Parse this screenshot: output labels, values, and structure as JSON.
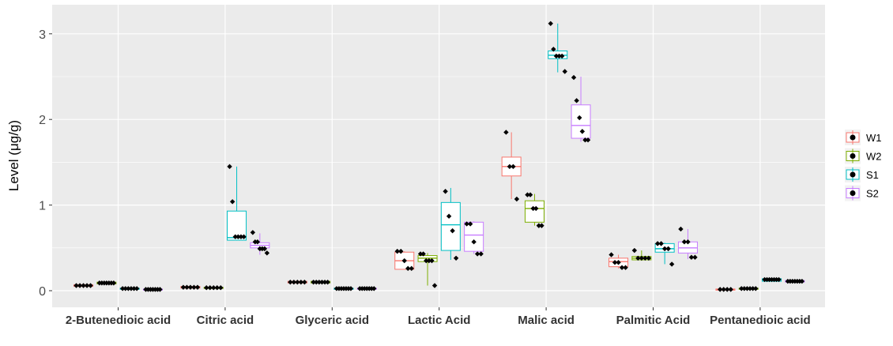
{
  "chart_data": {
    "type": "boxplot",
    "title": "",
    "xlabel": "",
    "ylabel": "Level (μg/g)",
    "ylim": [
      -0.2,
      3.35
    ],
    "yticks": [
      0,
      1,
      2,
      3
    ],
    "ytick_labels": [
      "0",
      "1",
      "2",
      "3"
    ],
    "grid": true,
    "legend_position": "right",
    "categories": [
      "2-Butenedioic acid",
      "Citric acid",
      "Glyceric acid",
      "Lactic Acid",
      "Malic acid",
      "Palmitic Acid",
      "Pentanedioic acid"
    ],
    "colors": {
      "W1": "#F8766D",
      "W2": "#7CAE00",
      "S1": "#00BFC4",
      "S2": "#C77CFF",
      "panel": "#EBEBEB",
      "grid": "#FFFFFF"
    },
    "series": [
      {
        "name": "W1",
        "boxes": [
          {
            "q1": 0.05,
            "median": 0.06,
            "q3": 0.07,
            "low": 0.05,
            "high": 0.07,
            "points": [
              0.06,
              0.06,
              0.06,
              0.06,
              0.06
            ]
          },
          {
            "q1": 0.03,
            "median": 0.04,
            "q3": 0.05,
            "low": 0.03,
            "high": 0.05,
            "points": [
              0.04,
              0.04,
              0.04,
              0.04,
              0.04
            ]
          },
          {
            "q1": 0.09,
            "median": 0.1,
            "q3": 0.11,
            "low": 0.09,
            "high": 0.11,
            "points": [
              0.1,
              0.1,
              0.1,
              0.1,
              0.1
            ]
          },
          {
            "q1": 0.25,
            "median": 0.35,
            "q3": 0.45,
            "low": 0.25,
            "high": 0.46,
            "points": [
              0.46,
              0.46,
              0.35,
              0.26,
              0.26
            ]
          },
          {
            "q1": 1.34,
            "median": 1.45,
            "q3": 1.56,
            "low": 1.07,
            "high": 1.85,
            "points": [
              1.85,
              1.45,
              1.45,
              1.07
            ]
          },
          {
            "q1": 0.28,
            "median": 0.34,
            "q3": 0.38,
            "low": 0.26,
            "high": 0.42,
            "points": [
              0.42,
              0.33,
              0.33,
              0.27,
              0.27
            ]
          },
          {
            "q1": 0.01,
            "median": 0.015,
            "q3": 0.02,
            "low": 0.01,
            "high": 0.02,
            "points": [
              0.015,
              0.015,
              0.015,
              0.015
            ]
          }
        ]
      },
      {
        "name": "W2",
        "boxes": [
          {
            "q1": 0.08,
            "median": 0.09,
            "q3": 0.1,
            "low": 0.08,
            "high": 0.1,
            "points": [
              0.09,
              0.09,
              0.09,
              0.09,
              0.09,
              0.09,
              0.09
            ]
          },
          {
            "q1": 0.03,
            "median": 0.035,
            "q3": 0.04,
            "low": 0.03,
            "high": 0.04,
            "points": [
              0.035,
              0.035,
              0.035,
              0.035,
              0.035
            ]
          },
          {
            "q1": 0.09,
            "median": 0.1,
            "q3": 0.11,
            "low": 0.09,
            "high": 0.11,
            "points": [
              0.1,
              0.1,
              0.1,
              0.1,
              0.1,
              0.1
            ]
          },
          {
            "q1": 0.34,
            "median": 0.38,
            "q3": 0.41,
            "low": 0.06,
            "high": 0.44,
            "points": [
              0.43,
              0.43,
              0.35,
              0.35,
              0.35,
              0.06
            ]
          },
          {
            "q1": 0.8,
            "median": 0.96,
            "q3": 1.05,
            "low": 0.76,
            "high": 1.13,
            "points": [
              1.12,
              1.12,
              0.96,
              0.96,
              0.76,
              0.76
            ]
          },
          {
            "q1": 0.36,
            "median": 0.38,
            "q3": 0.4,
            "low": 0.35,
            "high": 0.47,
            "points": [
              0.47,
              0.38,
              0.38,
              0.38,
              0.38
            ]
          },
          {
            "q1": 0.02,
            "median": 0.025,
            "q3": 0.03,
            "low": 0.02,
            "high": 0.03,
            "points": [
              0.025,
              0.025,
              0.025,
              0.025,
              0.025,
              0.025
            ]
          }
        ]
      },
      {
        "name": "S1",
        "boxes": [
          {
            "q1": 0.02,
            "median": 0.025,
            "q3": 0.03,
            "low": 0.02,
            "high": 0.03,
            "points": [
              0.025,
              0.025,
              0.025,
              0.025,
              0.025,
              0.025
            ]
          },
          {
            "q1": 0.59,
            "median": 0.62,
            "q3": 0.93,
            "low": 0.59,
            "high": 1.45,
            "points": [
              1.45,
              1.04,
              0.63,
              0.63,
              0.63,
              0.63
            ]
          },
          {
            "q1": 0.02,
            "median": 0.025,
            "q3": 0.03,
            "low": 0.02,
            "high": 0.03,
            "points": [
              0.025,
              0.025,
              0.025,
              0.025,
              0.025,
              0.025,
              0.025
            ]
          },
          {
            "q1": 0.47,
            "median": 0.77,
            "q3": 1.03,
            "low": 0.36,
            "high": 1.2,
            "points": [
              1.16,
              0.87,
              0.7,
              0.38
            ]
          },
          {
            "q1": 2.71,
            "median": 2.75,
            "q3": 2.8,
            "low": 2.55,
            "high": 3.12,
            "points": [
              3.12,
              2.82,
              2.74,
              2.74,
              2.74,
              2.56
            ]
          },
          {
            "q1": 0.45,
            "median": 0.49,
            "q3": 0.55,
            "low": 0.31,
            "high": 0.56,
            "points": [
              0.55,
              0.55,
              0.49,
              0.49,
              0.31
            ]
          },
          {
            "q1": 0.11,
            "median": 0.13,
            "q3": 0.14,
            "low": 0.11,
            "high": 0.14,
            "points": [
              0.13,
              0.13,
              0.13,
              0.13,
              0.13,
              0.13,
              0.13
            ]
          }
        ]
      },
      {
        "name": "S2",
        "boxes": [
          {
            "q1": 0.01,
            "median": 0.015,
            "q3": 0.02,
            "low": 0.01,
            "high": 0.02,
            "points": [
              0.015,
              0.015,
              0.015,
              0.015,
              0.015,
              0.015,
              0.015
            ]
          },
          {
            "q1": 0.5,
            "median": 0.53,
            "q3": 0.56,
            "low": 0.42,
            "high": 0.67,
            "points": [
              0.68,
              0.57,
              0.57,
              0.49,
              0.49,
              0.49,
              0.44
            ]
          },
          {
            "q1": 0.02,
            "median": 0.025,
            "q3": 0.03,
            "low": 0.02,
            "high": 0.03,
            "points": [
              0.025,
              0.025,
              0.025,
              0.025,
              0.025,
              0.025,
              0.025
            ]
          },
          {
            "q1": 0.46,
            "median": 0.65,
            "q3": 0.8,
            "low": 0.43,
            "high": 0.81,
            "points": [
              0.78,
              0.78,
              0.57,
              0.43,
              0.43
            ]
          },
          {
            "q1": 1.78,
            "median": 1.93,
            "q3": 2.17,
            "low": 1.74,
            "high": 2.5,
            "points": [
              2.49,
              2.22,
              2.02,
              1.86,
              1.76,
              1.76
            ]
          },
          {
            "q1": 0.44,
            "median": 0.5,
            "q3": 0.57,
            "low": 0.37,
            "high": 0.72,
            "points": [
              0.72,
              0.57,
              0.57,
              0.39,
              0.39
            ]
          },
          {
            "q1": 0.1,
            "median": 0.11,
            "q3": 0.12,
            "low": 0.1,
            "high": 0.12,
            "points": [
              0.11,
              0.11,
              0.11,
              0.11,
              0.11,
              0.11,
              0.11
            ]
          }
        ]
      }
    ]
  }
}
